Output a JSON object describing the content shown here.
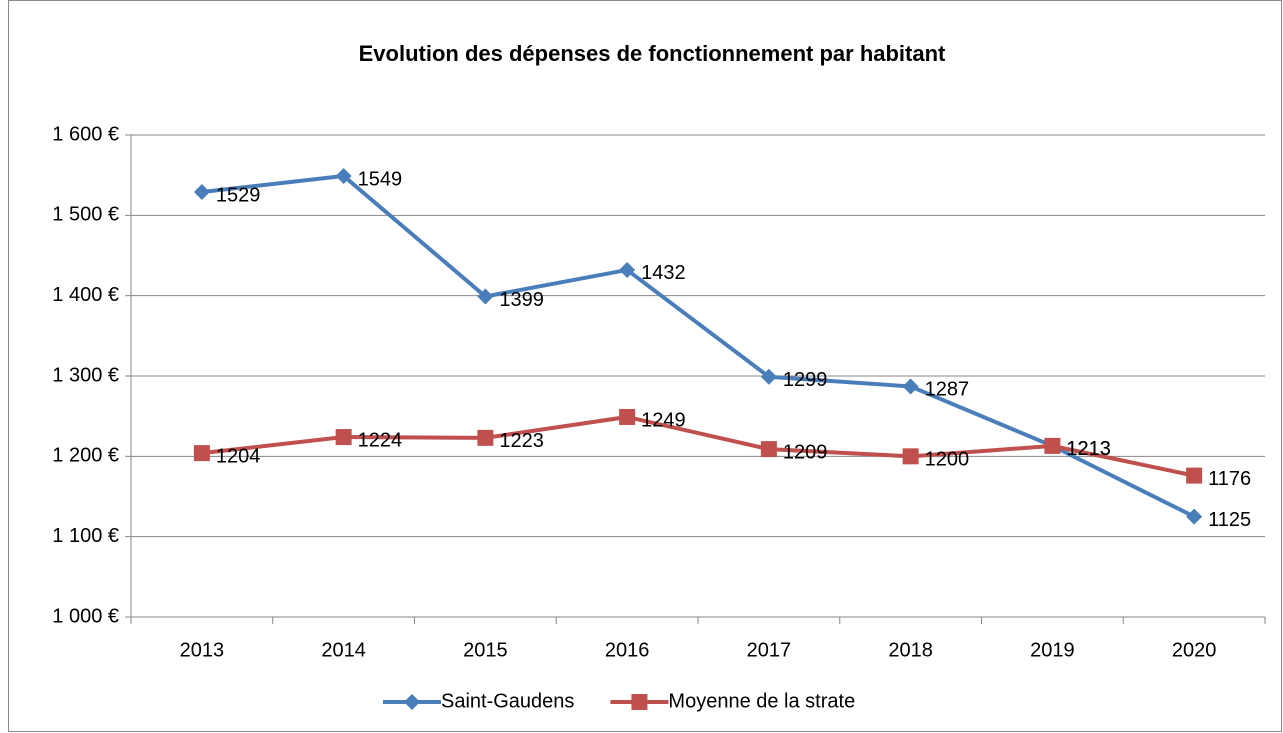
{
  "chart_data": {
    "type": "line",
    "title": "Evolution des dépenses de fonctionnement par habitant",
    "categories": [
      "2013",
      "2014",
      "2015",
      "2016",
      "2017",
      "2018",
      "2019",
      "2020"
    ],
    "series": [
      {
        "name": "Saint-Gaudens",
        "color": "#4a7ebb",
        "marker": "diamond",
        "values": [
          1529,
          1549,
          1399,
          1432,
          1299,
          1287,
          1213,
          1125
        ]
      },
      {
        "name": "Moyenne de la strate",
        "color": "#c0504d",
        "marker": "square",
        "values": [
          1204,
          1224,
          1223,
          1249,
          1209,
          1200,
          1213,
          1176
        ]
      }
    ],
    "ylim": [
      1000,
      1600
    ],
    "yticks": [
      {
        "value": 1000,
        "label": "1 000 €"
      },
      {
        "value": 1100,
        "label": "1 100 €"
      },
      {
        "value": 1200,
        "label": "1 200 €"
      },
      {
        "value": 1300,
        "label": "1 300 €"
      },
      {
        "value": 1400,
        "label": "1 400 €"
      },
      {
        "value": 1500,
        "label": "1 500 €"
      },
      {
        "value": 1600,
        "label": "1 600 €"
      }
    ],
    "grid": true,
    "legend": "bottom"
  }
}
